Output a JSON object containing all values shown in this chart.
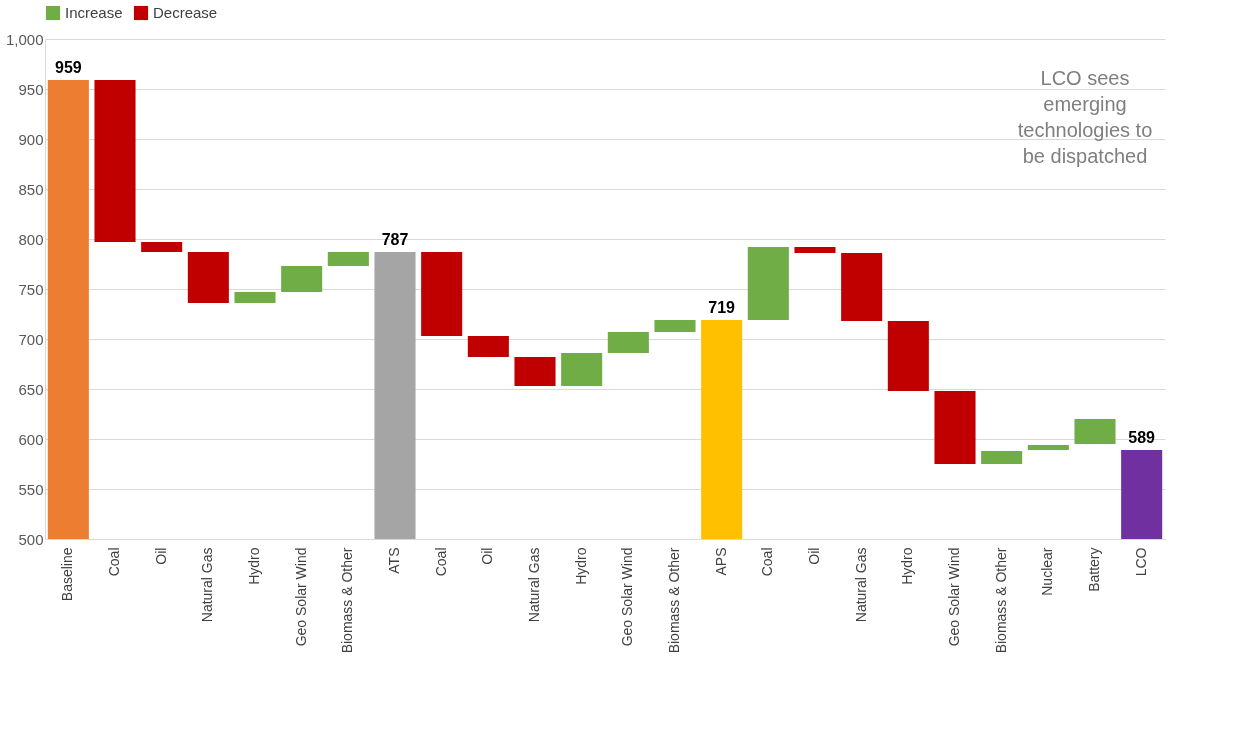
{
  "chart_data": {
    "type": "bar",
    "categories": [
      "Baseline",
      "Coal",
      "Oil",
      "Natural Gas",
      "Hydro",
      "Geo Solar Wind",
      "Biomass & Other",
      "ATS",
      "Coal",
      "Oil",
      "Natural Gas",
      "Hydro",
      "Geo Solar Wind",
      "Biomass & Other",
      "APS",
      "Coal",
      "Oil",
      "Natural Gas",
      "Hydro",
      "Geo Solar Wind",
      "Biomass & Other",
      "Nuclear",
      "Battery",
      "LCO"
    ],
    "series": [
      {
        "colors": [
          "#ed7d31",
          null,
          null,
          null,
          null,
          null,
          null,
          "#a5a5a5",
          null,
          null,
          null,
          null,
          null,
          null,
          "#ffc000",
          null,
          null,
          null,
          null,
          null,
          null,
          null,
          null,
          "#7030a0"
        ],
        "values": [
          959,
          null,
          null,
          null,
          null,
          null,
          null,
          787,
          null,
          null,
          null,
          null,
          null,
          null,
          719,
          null,
          null,
          null,
          null,
          null,
          null,
          null,
          null,
          589
        ],
        "value_labels": [
          "959",
          null,
          null,
          null,
          null,
          null,
          null,
          "787",
          null,
          null,
          null,
          null,
          null,
          null,
          "719",
          null,
          null,
          null,
          null,
          null,
          null,
          null,
          null,
          "589"
        ]
      },
      {
        "name": "Increase",
        "color": "#70ad47",
        "values": [
          null,
          null,
          null,
          null,
          11,
          26,
          14,
          null,
          null,
          null,
          null,
          33,
          21,
          12,
          null,
          73,
          null,
          null,
          null,
          null,
          13,
          5,
          25,
          null
        ],
        "base": [
          null,
          null,
          null,
          null,
          736,
          747,
          773,
          null,
          null,
          null,
          null,
          653,
          686,
          707,
          null,
          719,
          null,
          null,
          null,
          null,
          575,
          589,
          595,
          null
        ]
      },
      {
        "name": "Decrease",
        "color": "#c00000",
        "values": [
          null,
          -162,
          -10,
          -51,
          null,
          null,
          null,
          null,
          -84,
          -21,
          -29,
          null,
          null,
          null,
          null,
          null,
          -6,
          -68,
          -70,
          -73,
          null,
          null,
          null,
          null
        ],
        "base": [
          null,
          959,
          797,
          787,
          null,
          null,
          null,
          null,
          787,
          703,
          682,
          null,
          null,
          null,
          null,
          null,
          792,
          786,
          718,
          648,
          null,
          null,
          null,
          null
        ]
      }
    ],
    "ylim": [
      500,
      1000
    ],
    "yticks": [
      500,
      550,
      600,
      650,
      700,
      750,
      800,
      850,
      900,
      950,
      {
        "value": 1000,
        "label": "1,000"
      }
    ],
    "grid": "y",
    "legend": "top",
    "annotations": [
      "LCO sees emerging technologies to be dispatched"
    ]
  }
}
